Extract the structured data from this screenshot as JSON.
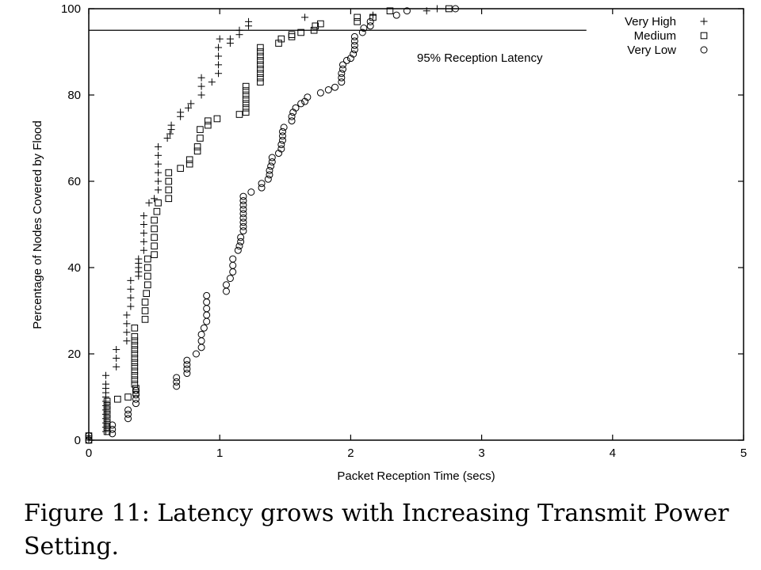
{
  "chart_data": {
    "type": "scatter",
    "xlabel": "Packet Reception Time (secs)",
    "ylabel": "Percentage of Nodes Covered by Flood",
    "xlim": [
      0,
      5
    ],
    "ylim": [
      0,
      100
    ],
    "xticks": [
      0,
      1,
      2,
      3,
      4,
      5
    ],
    "yticks": [
      0,
      20,
      40,
      60,
      80,
      100
    ],
    "grid": false,
    "legend_position": "top-right",
    "reference_line": {
      "y": 95,
      "x_end": 3.8,
      "label": "95% Reception Latency"
    },
    "series": [
      {
        "name": "Very High",
        "marker": "plus",
        "points": [
          [
            0.0,
            0
          ],
          [
            0.0,
            1
          ],
          [
            0.13,
            2
          ],
          [
            0.13,
            3
          ],
          [
            0.13,
            4
          ],
          [
            0.13,
            5
          ],
          [
            0.13,
            6
          ],
          [
            0.13,
            7
          ],
          [
            0.13,
            8
          ],
          [
            0.13,
            9
          ],
          [
            0.13,
            10
          ],
          [
            0.13,
            11
          ],
          [
            0.13,
            12
          ],
          [
            0.13,
            13
          ],
          [
            0.13,
            15
          ],
          [
            0.21,
            17
          ],
          [
            0.21,
            19
          ],
          [
            0.21,
            21
          ],
          [
            0.29,
            23
          ],
          [
            0.29,
            25
          ],
          [
            0.29,
            27
          ],
          [
            0.29,
            29
          ],
          [
            0.32,
            31
          ],
          [
            0.32,
            33
          ],
          [
            0.32,
            35
          ],
          [
            0.32,
            37
          ],
          [
            0.38,
            38
          ],
          [
            0.38,
            39
          ],
          [
            0.38,
            40
          ],
          [
            0.38,
            41
          ],
          [
            0.38,
            42
          ],
          [
            0.42,
            44
          ],
          [
            0.42,
            46
          ],
          [
            0.42,
            48
          ],
          [
            0.42,
            50
          ],
          [
            0.42,
            52
          ],
          [
            0.46,
            55
          ],
          [
            0.5,
            56
          ],
          [
            0.53,
            58
          ],
          [
            0.53,
            60
          ],
          [
            0.53,
            62
          ],
          [
            0.53,
            64
          ],
          [
            0.53,
            66
          ],
          [
            0.53,
            68
          ],
          [
            0.6,
            70
          ],
          [
            0.62,
            71
          ],
          [
            0.63,
            72
          ],
          [
            0.63,
            73
          ],
          [
            0.7,
            75
          ],
          [
            0.7,
            76
          ],
          [
            0.76,
            77
          ],
          [
            0.78,
            78
          ],
          [
            0.86,
            80
          ],
          [
            0.86,
            82
          ],
          [
            0.86,
            84
          ],
          [
            0.94,
            83
          ],
          [
            0.99,
            85
          ],
          [
            0.99,
            87
          ],
          [
            0.99,
            89
          ],
          [
            0.99,
            91
          ],
          [
            1.0,
            93
          ],
          [
            1.08,
            92
          ],
          [
            1.08,
            93
          ],
          [
            1.15,
            94
          ],
          [
            1.15,
            95
          ],
          [
            1.22,
            96
          ],
          [
            1.22,
            97
          ],
          [
            1.65,
            98
          ],
          [
            2.17,
            98.5
          ],
          [
            2.58,
            99.5
          ],
          [
            2.66,
            100
          ]
        ]
      },
      {
        "name": "Medium",
        "marker": "square",
        "points": [
          [
            0.0,
            0
          ],
          [
            0.0,
            1
          ],
          [
            0.14,
            2
          ],
          [
            0.14,
            3
          ],
          [
            0.14,
            4
          ],
          [
            0.14,
            5
          ],
          [
            0.14,
            6
          ],
          [
            0.14,
            7
          ],
          [
            0.14,
            8
          ],
          [
            0.14,
            9
          ],
          [
            0.22,
            9.5
          ],
          [
            0.3,
            10
          ],
          [
            0.36,
            11
          ],
          [
            0.36,
            12
          ],
          [
            0.35,
            13
          ],
          [
            0.35,
            14
          ],
          [
            0.35,
            15
          ],
          [
            0.35,
            16
          ],
          [
            0.35,
            17
          ],
          [
            0.35,
            18
          ],
          [
            0.35,
            19
          ],
          [
            0.35,
            20
          ],
          [
            0.35,
            21
          ],
          [
            0.35,
            22
          ],
          [
            0.35,
            23
          ],
          [
            0.35,
            24
          ],
          [
            0.35,
            26
          ],
          [
            0.43,
            28
          ],
          [
            0.43,
            30
          ],
          [
            0.43,
            32
          ],
          [
            0.44,
            34
          ],
          [
            0.45,
            36
          ],
          [
            0.45,
            38
          ],
          [
            0.45,
            40
          ],
          [
            0.45,
            42
          ],
          [
            0.5,
            43
          ],
          [
            0.5,
            45
          ],
          [
            0.5,
            47
          ],
          [
            0.5,
            49
          ],
          [
            0.5,
            51
          ],
          [
            0.52,
            53
          ],
          [
            0.53,
            55
          ],
          [
            0.61,
            56
          ],
          [
            0.61,
            58
          ],
          [
            0.61,
            60
          ],
          [
            0.61,
            62
          ],
          [
            0.7,
            63
          ],
          [
            0.77,
            64
          ],
          [
            0.77,
            65
          ],
          [
            0.83,
            67
          ],
          [
            0.83,
            68
          ],
          [
            0.85,
            70
          ],
          [
            0.85,
            72
          ],
          [
            0.91,
            73
          ],
          [
            0.91,
            74
          ],
          [
            0.98,
            74.5
          ],
          [
            1.15,
            75.5
          ],
          [
            1.2,
            76
          ],
          [
            1.2,
            77
          ],
          [
            1.2,
            78
          ],
          [
            1.2,
            79
          ],
          [
            1.2,
            80
          ],
          [
            1.2,
            81
          ],
          [
            1.2,
            82
          ],
          [
            1.31,
            83
          ],
          [
            1.31,
            84
          ],
          [
            1.31,
            85
          ],
          [
            1.31,
            86
          ],
          [
            1.31,
            87
          ],
          [
            1.31,
            88
          ],
          [
            1.31,
            89
          ],
          [
            1.31,
            90
          ],
          [
            1.31,
            91
          ],
          [
            1.45,
            92
          ],
          [
            1.47,
            93
          ],
          [
            1.55,
            93.5
          ],
          [
            1.55,
            94
          ],
          [
            1.62,
            94.5
          ],
          [
            1.72,
            95
          ],
          [
            1.73,
            96
          ],
          [
            1.77,
            96.5
          ],
          [
            2.05,
            97
          ],
          [
            2.05,
            98
          ],
          [
            2.17,
            98
          ],
          [
            2.3,
            99.5
          ],
          [
            2.75,
            100
          ]
        ]
      },
      {
        "name": "Very Low",
        "marker": "circle",
        "points": [
          [
            0.0,
            0
          ],
          [
            0.0,
            1
          ],
          [
            0.18,
            1.5
          ],
          [
            0.18,
            2.5
          ],
          [
            0.18,
            3.5
          ],
          [
            0.3,
            5
          ],
          [
            0.3,
            6
          ],
          [
            0.3,
            7
          ],
          [
            0.36,
            8.5
          ],
          [
            0.36,
            9.5
          ],
          [
            0.36,
            10.5
          ],
          [
            0.36,
            11.5
          ],
          [
            0.67,
            12.5
          ],
          [
            0.67,
            13.5
          ],
          [
            0.67,
            14.5
          ],
          [
            0.75,
            15.5
          ],
          [
            0.75,
            16.5
          ],
          [
            0.75,
            17.5
          ],
          [
            0.75,
            18.5
          ],
          [
            0.82,
            20
          ],
          [
            0.86,
            21.5
          ],
          [
            0.86,
            23
          ],
          [
            0.86,
            24.5
          ],
          [
            0.88,
            26
          ],
          [
            0.9,
            27.5
          ],
          [
            0.9,
            29
          ],
          [
            0.9,
            30.5
          ],
          [
            0.9,
            32
          ],
          [
            0.9,
            33.5
          ],
          [
            1.05,
            34.5
          ],
          [
            1.05,
            36
          ],
          [
            1.08,
            37.5
          ],
          [
            1.1,
            39
          ],
          [
            1.1,
            40.5
          ],
          [
            1.1,
            42
          ],
          [
            1.14,
            44
          ],
          [
            1.15,
            45
          ],
          [
            1.16,
            46
          ],
          [
            1.16,
            47
          ],
          [
            1.18,
            48.5
          ],
          [
            1.18,
            49.5
          ],
          [
            1.18,
            50.5
          ],
          [
            1.18,
            51.5
          ],
          [
            1.18,
            52.5
          ],
          [
            1.18,
            53.5
          ],
          [
            1.18,
            54.5
          ],
          [
            1.18,
            55.5
          ],
          [
            1.18,
            56.5
          ],
          [
            1.24,
            57.5
          ],
          [
            1.32,
            58.5
          ],
          [
            1.32,
            59.5
          ],
          [
            1.37,
            60.5
          ],
          [
            1.38,
            61.5
          ],
          [
            1.38,
            62.5
          ],
          [
            1.39,
            63.5
          ],
          [
            1.4,
            64.5
          ],
          [
            1.4,
            65.5
          ],
          [
            1.45,
            66.5
          ],
          [
            1.47,
            67.5
          ],
          [
            1.47,
            68.5
          ],
          [
            1.48,
            69.5
          ],
          [
            1.48,
            70.5
          ],
          [
            1.48,
            71.5
          ],
          [
            1.49,
            72.5
          ],
          [
            1.55,
            74
          ],
          [
            1.55,
            75
          ],
          [
            1.56,
            76
          ],
          [
            1.58,
            77
          ],
          [
            1.62,
            78
          ],
          [
            1.65,
            78.5
          ],
          [
            1.67,
            79.5
          ],
          [
            1.77,
            80.5
          ],
          [
            1.83,
            81.2
          ],
          [
            1.88,
            81.8
          ],
          [
            1.93,
            83
          ],
          [
            1.93,
            84
          ],
          [
            1.93,
            85
          ],
          [
            1.94,
            86
          ],
          [
            1.94,
            87
          ],
          [
            1.97,
            88
          ],
          [
            2.0,
            88.5
          ],
          [
            2.02,
            89.5
          ],
          [
            2.03,
            90.5
          ],
          [
            2.03,
            91.5
          ],
          [
            2.03,
            92.5
          ],
          [
            2.03,
            93.5
          ],
          [
            2.09,
            94.5
          ],
          [
            2.1,
            95.5
          ],
          [
            2.15,
            96
          ],
          [
            2.15,
            97
          ],
          [
            2.35,
            98.5
          ],
          [
            2.43,
            99.5
          ],
          [
            2.8,
            100
          ]
        ]
      }
    ]
  },
  "caption": "Figure 11: Latency grows with Increasing Transmit Power Setting."
}
